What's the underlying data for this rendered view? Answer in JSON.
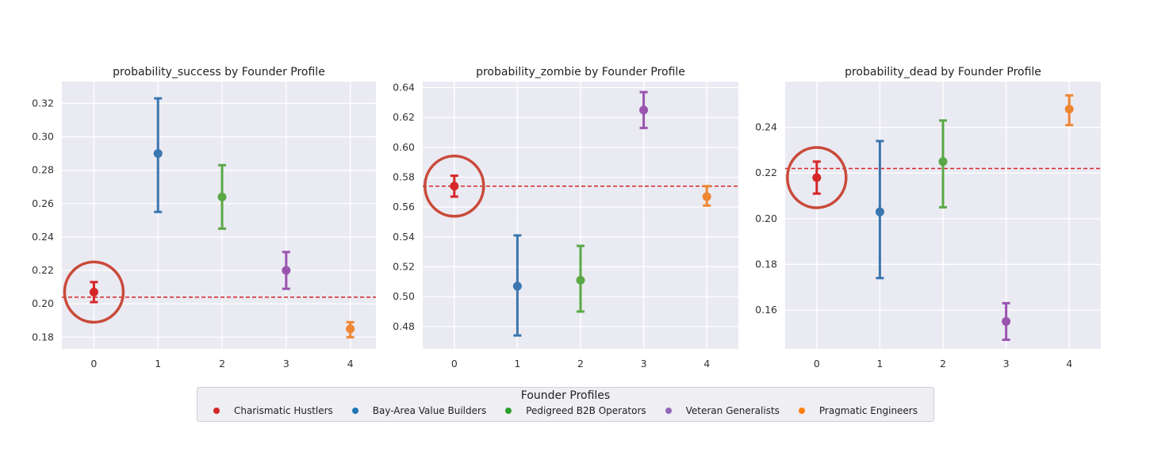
{
  "chart_data": [
    {
      "type": "scatter",
      "title": "probability_success by Founder Profile",
      "categories": [
        "0",
        "1",
        "2",
        "3",
        "4"
      ],
      "points": [
        {
          "x": 0,
          "y": 0.207,
          "low": 0.201,
          "high": 0.213
        },
        {
          "x": 1,
          "y": 0.29,
          "low": 0.255,
          "high": 0.323
        },
        {
          "x": 2,
          "y": 0.264,
          "low": 0.245,
          "high": 0.283
        },
        {
          "x": 3,
          "y": 0.22,
          "low": 0.209,
          "high": 0.231
        },
        {
          "x": 4,
          "y": 0.185,
          "low": 0.18,
          "high": 0.189
        }
      ],
      "reference_line": 0.204,
      "highlight_index": 0,
      "xlim": [
        -0.5,
        4.4
      ],
      "ylim": [
        0.173,
        0.333
      ],
      "yticks": [
        0.18,
        0.2,
        0.22,
        0.24,
        0.26,
        0.28,
        0.3,
        0.32
      ],
      "ytick_labels": [
        "0.18",
        "0.20",
        "0.22",
        "0.24",
        "0.26",
        "0.28",
        "0.30",
        "0.32"
      ],
      "grid": true
    },
    {
      "type": "scatter",
      "title": "probability_zombie by Founder Profile",
      "categories": [
        "0",
        "1",
        "2",
        "3",
        "4"
      ],
      "points": [
        {
          "x": 0,
          "y": 0.574,
          "low": 0.567,
          "high": 0.581
        },
        {
          "x": 1,
          "y": 0.507,
          "low": 0.474,
          "high": 0.541
        },
        {
          "x": 2,
          "y": 0.511,
          "low": 0.49,
          "high": 0.534
        },
        {
          "x": 3,
          "y": 0.625,
          "low": 0.613,
          "high": 0.637
        },
        {
          "x": 4,
          "y": 0.567,
          "low": 0.561,
          "high": 0.574
        }
      ],
      "reference_line": 0.574,
      "highlight_index": 0,
      "xlim": [
        -0.5,
        4.5
      ],
      "ylim": [
        0.465,
        0.644
      ],
      "yticks": [
        0.48,
        0.5,
        0.52,
        0.54,
        0.56,
        0.58,
        0.6,
        0.62,
        0.64
      ],
      "ytick_labels": [
        "0.48",
        "0.50",
        "0.52",
        "0.54",
        "0.56",
        "0.58",
        "0.60",
        "0.62",
        "0.64"
      ],
      "grid": true
    },
    {
      "type": "scatter",
      "title": "probability_dead by Founder Profile",
      "categories": [
        "0",
        "1",
        "2",
        "3",
        "4"
      ],
      "points": [
        {
          "x": 0,
          "y": 0.218,
          "low": 0.211,
          "high": 0.225
        },
        {
          "x": 1,
          "y": 0.203,
          "low": 0.174,
          "high": 0.234
        },
        {
          "x": 2,
          "y": 0.225,
          "low": 0.205,
          "high": 0.243
        },
        {
          "x": 3,
          "y": 0.155,
          "low": 0.147,
          "high": 0.163
        },
        {
          "x": 4,
          "y": 0.248,
          "low": 0.241,
          "high": 0.254
        }
      ],
      "reference_line": 0.222,
      "highlight_index": 0,
      "xlim": [
        -0.5,
        4.5
      ],
      "ylim": [
        0.143,
        0.26
      ],
      "yticks": [
        0.16,
        0.18,
        0.2,
        0.22,
        0.24
      ],
      "ytick_labels": [
        "0.16",
        "0.18",
        "0.20",
        "0.22",
        "0.24"
      ],
      "grid": true
    }
  ],
  "legend": {
    "title": "Founder Profiles",
    "placement": "bottom-center",
    "entries": [
      {
        "label": "Charismatic Hustlers",
        "color": "#d62728"
      },
      {
        "label": "Bay-Area Value Builders",
        "color": "#1f77b4"
      },
      {
        "label": "Pedigreed B2B Operators",
        "color": "#2ca02c"
      },
      {
        "label": "Veteran Generalists",
        "color": "#9467bd"
      },
      {
        "label": "Pragmatic Engineers",
        "color": "#ff7f0e"
      }
    ]
  },
  "colors": {
    "series": [
      "#d62728",
      "#3a76af",
      "#5aa846",
      "#9a55b0",
      "#ef8632"
    ],
    "reference_line": "#d62728",
    "highlight_circle": "#c94a3a",
    "axes_face": "#eaeaf2"
  }
}
